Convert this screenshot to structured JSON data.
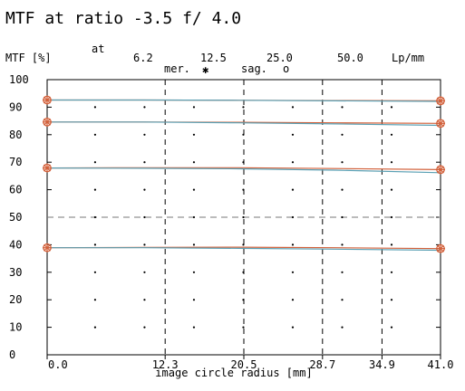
{
  "chart_data": {
    "type": "line",
    "title": "MTF at ratio -3.5   f/ 4.0",
    "ylabel": "MTF [%]",
    "xlabel": "image circle radius [mm]",
    "freq_label_at": "at",
    "frequency_labels": [
      "6.2",
      "12.5",
      "25.0",
      "50.0"
    ],
    "frequency_unit": "Lp/mm",
    "legend": {
      "meridional": "mer.",
      "meridional_symbol": "✱",
      "sagittal": "sag.",
      "sagittal_symbol": "o"
    },
    "xlim": [
      0,
      41
    ],
    "ylim": [
      0,
      100
    ],
    "x_ticks": [
      "0.0",
      "12.3",
      "20.5",
      "28.7",
      "34.9",
      "41.0"
    ],
    "x_tick_values": [
      0,
      12.3,
      20.5,
      28.7,
      34.9,
      41.0
    ],
    "y_ticks": [
      0,
      10,
      20,
      30,
      40,
      50,
      60,
      70,
      80,
      90,
      100
    ],
    "colors": {
      "meridional": "#d2603a",
      "sagittal": "#5aa0b4",
      "grid": "#000000",
      "marker": "#d2603a"
    },
    "series": [
      {
        "name": "6.2",
        "mode": "mer.",
        "x": [
          0,
          10,
          20,
          30,
          41
        ],
        "y": [
          92.6,
          92.6,
          92.5,
          92.4,
          92.3
        ]
      },
      {
        "name": "6.2",
        "mode": "sag.",
        "x": [
          0,
          10,
          20,
          30,
          41
        ],
        "y": [
          92.6,
          92.6,
          92.5,
          92.3,
          92.1
        ]
      },
      {
        "name": "12.5",
        "mode": "mer.",
        "x": [
          0,
          10,
          20,
          30,
          41
        ],
        "y": [
          84.6,
          84.6,
          84.5,
          84.3,
          84.1
        ]
      },
      {
        "name": "12.5",
        "mode": "sag.",
        "x": [
          0,
          10,
          20,
          30,
          41
        ],
        "y": [
          84.6,
          84.6,
          84.3,
          83.9,
          83.4
        ]
      },
      {
        "name": "25.0",
        "mode": "mer.",
        "x": [
          0,
          10,
          20,
          30,
          41
        ],
        "y": [
          67.9,
          68.0,
          68.0,
          67.7,
          67.3
        ]
      },
      {
        "name": "25.0",
        "mode": "sag.",
        "x": [
          0,
          10,
          20,
          30,
          41
        ],
        "y": [
          67.9,
          67.8,
          67.6,
          67.1,
          66.2
        ]
      },
      {
        "name": "50.0",
        "mode": "mer.",
        "x": [
          0,
          10,
          20,
          30,
          41
        ],
        "y": [
          38.9,
          39.0,
          39.1,
          38.9,
          38.6
        ]
      },
      {
        "name": "50.0",
        "mode": "sag.",
        "x": [
          0,
          10,
          20,
          30,
          41
        ],
        "y": [
          38.9,
          38.9,
          38.7,
          38.4,
          38.0
        ]
      }
    ]
  }
}
